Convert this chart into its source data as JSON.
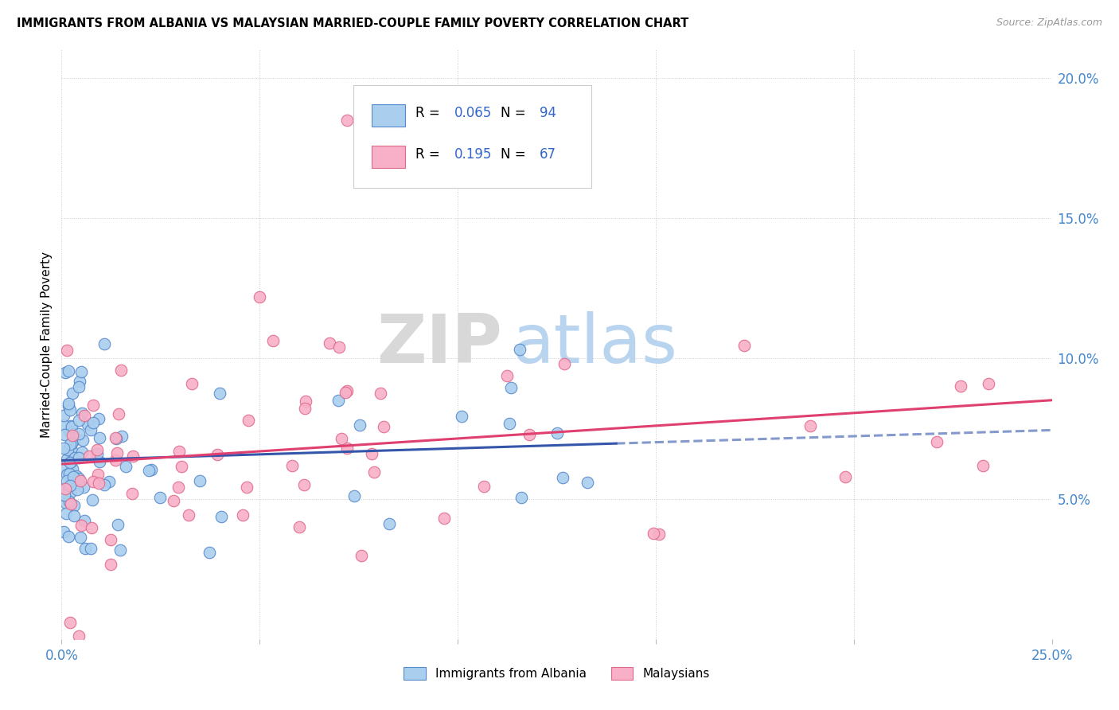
{
  "title": "IMMIGRANTS FROM ALBANIA VS MALAYSIAN MARRIED-COUPLE FAMILY POVERTY CORRELATION CHART",
  "source": "Source: ZipAtlas.com",
  "ylabel": "Married-Couple Family Poverty",
  "xlim": [
    0.0,
    0.25
  ],
  "ylim": [
    0.0,
    0.21
  ],
  "xtick_vals": [
    0.0,
    0.05,
    0.1,
    0.15,
    0.2,
    0.25
  ],
  "xtick_labels": [
    "0.0%",
    "",
    "",
    "",
    "",
    "25.0%"
  ],
  "ytick_vals": [
    0.0,
    0.05,
    0.1,
    0.15,
    0.2
  ],
  "ytick_labels": [
    "",
    "5.0%",
    "10.0%",
    "15.0%",
    "20.0%"
  ],
  "albania_color": "#aacfee",
  "malaysia_color": "#f8afc8",
  "albania_edge": "#5588cc",
  "malaysia_edge": "#e06888",
  "albania_R": 0.065,
  "albania_N": 94,
  "malaysia_R": 0.195,
  "malaysia_N": 67,
  "albania_line_color": "#3355aa",
  "malaysia_line_color": "#e04070",
  "watermark_zip": "ZIP",
  "watermark_atlas": "atlas",
  "legend_albania": "Immigrants from Albania",
  "legend_malaysia": "Malaysians"
}
